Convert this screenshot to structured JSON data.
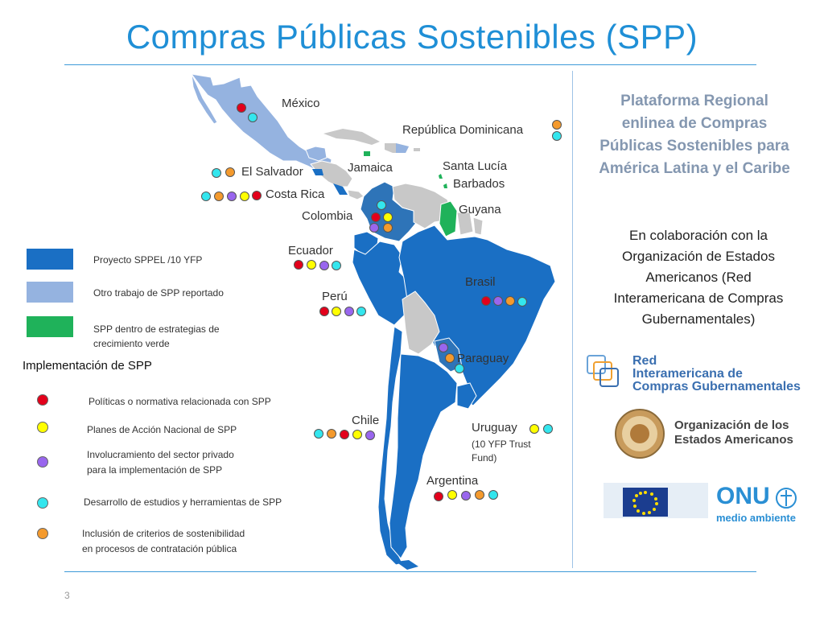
{
  "title": "Compras Públicas Sostenibles (SPP)",
  "page_number": "3",
  "colors": {
    "sppel": "#1a6fc4",
    "other_spp": "#95b3e0",
    "green_growth": "#1fb25a",
    "other_land": "#c8c8c8",
    "title": "#1f8fd6"
  },
  "countries": [
    {
      "name": "México",
      "dots": [
        "red",
        "cyan"
      ]
    },
    {
      "name": "República Dominicana",
      "dots": [
        "orange",
        "cyan"
      ]
    },
    {
      "name": "El Salvador",
      "dots": [
        "cyan",
        "orange"
      ]
    },
    {
      "name": "Jamaica",
      "dots": []
    },
    {
      "name": "Santa Lucía",
      "dots": []
    },
    {
      "name": "Barbados",
      "dots": []
    },
    {
      "name": "Costa Rica",
      "dots": [
        "cyan",
        "orange",
        "purple",
        "yellow",
        "red"
      ]
    },
    {
      "name": "Colombia",
      "dots": [
        "cyan",
        "red",
        "yellow",
        "purple",
        "orange"
      ]
    },
    {
      "name": "Guyana",
      "dots": []
    },
    {
      "name": "Ecuador",
      "dots": [
        "red",
        "yellow",
        "purple",
        "cyan"
      ]
    },
    {
      "name": "Perú",
      "dots": [
        "red",
        "yellow",
        "purple",
        "cyan"
      ]
    },
    {
      "name": "Brasil",
      "dots": [
        "red",
        "purple",
        "orange",
        "cyan"
      ]
    },
    {
      "name": "Paraguay",
      "dots": [
        "purple",
        "orange",
        "cyan"
      ]
    },
    {
      "name": "Chile",
      "dots": [
        "cyan",
        "orange",
        "red",
        "yellow",
        "purple"
      ]
    },
    {
      "name": "Uruguay",
      "dots": [
        "yellow",
        "cyan"
      ]
    },
    {
      "name": "(10 YFP Trust",
      "dots": []
    },
    {
      "name": "Fund)",
      "dots": []
    },
    {
      "name": "Argentina",
      "dots": [
        "red",
        "yellow",
        "purple",
        "orange",
        "cyan"
      ]
    }
  ],
  "legend": {
    "areas": [
      {
        "label": "Proyecto SPPEL /10 YFP",
        "color": "#1a6fc4"
      },
      {
        "label": "Otro trabajo de SPP reportado",
        "color": "#95b3e0"
      },
      {
        "label_line1": "SPP dentro de estrategias de",
        "label_line2": "crecimiento verde",
        "color": "#1fb25a"
      }
    ],
    "implementation_title": "Implementación de SPP",
    "implementation": [
      {
        "color": "red",
        "line1": "Políticas  o normativa relacionada con SPP",
        "line2": ""
      },
      {
        "color": "yellow",
        "line1": "Planes de Acción Nacional de SPP",
        "line2": ""
      },
      {
        "color": "purple",
        "line1": "Involucramiento del sector privado",
        "line2": "para la implementación de SPP"
      },
      {
        "color": "cyan",
        "line1": "Desarrollo de estudios y herramientas de SPP",
        "line2": ""
      },
      {
        "color": "orange",
        "line1": "Inclusión de criterios de sostenibilidad",
        "line2": "en procesos de contratación pública"
      }
    ]
  },
  "right_panel": {
    "platform_lines": [
      "Plataforma Regional",
      "enlinea de Compras",
      "Públicas Sostenibles para",
      "América Latina y el Caribe"
    ],
    "collab_lines": [
      "En colaboración con la",
      "Organización de Estados",
      "Americanos (Red",
      "Interamericana de Compras",
      "Gubernamentales)"
    ],
    "logos": {
      "red_line1": "Red",
      "red_line2": "Interamericana de",
      "red_line3": "Compras Gubernamentales",
      "oea_line1": "Organización de los",
      "oea_line2": "Estados Americanos",
      "eu_caption": "Comisión Europea",
      "onu_big": "ONU",
      "onu_small": "medio ambiente"
    }
  }
}
